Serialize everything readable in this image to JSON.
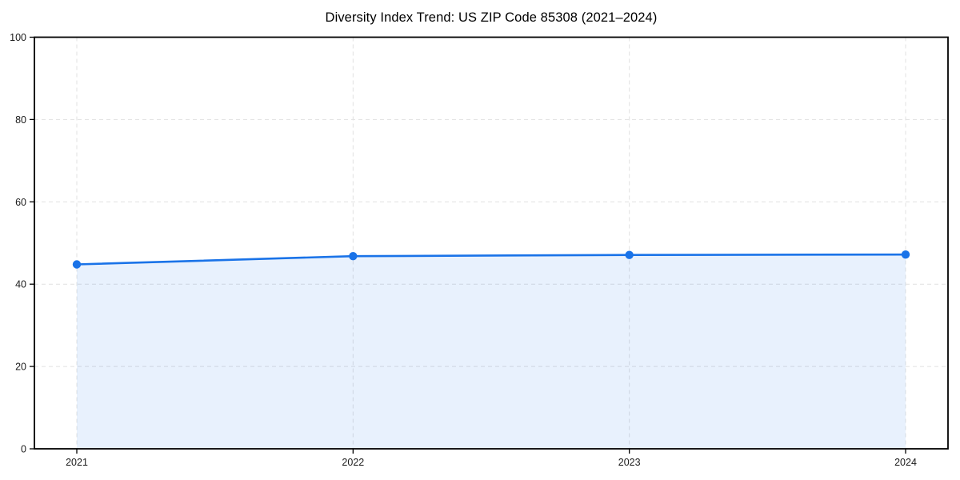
{
  "chart_data": {
    "type": "area",
    "title": "Diversity Index Trend: US ZIP Code 85308 (2021–2024)",
    "categories": [
      "2021",
      "2022",
      "2023",
      "2024"
    ],
    "series": [
      {
        "name": "Diversity Index",
        "values": [
          44.8,
          46.8,
          47.1,
          47.2
        ]
      }
    ],
    "xlabel": "",
    "ylabel": "",
    "ylim": [
      0,
      100
    ],
    "yticks": [
      0,
      20,
      40,
      60,
      80,
      100
    ],
    "grid": "dashed",
    "legend": "none",
    "marker": "circle",
    "fill_opacity": 0.1,
    "colors": {
      "line": "#1a73e8",
      "fill": "#1a73e8",
      "axis": "#000000",
      "grid": "#e1e1e1",
      "tick_label": "#1a1a1a",
      "title": "#000000"
    }
  }
}
